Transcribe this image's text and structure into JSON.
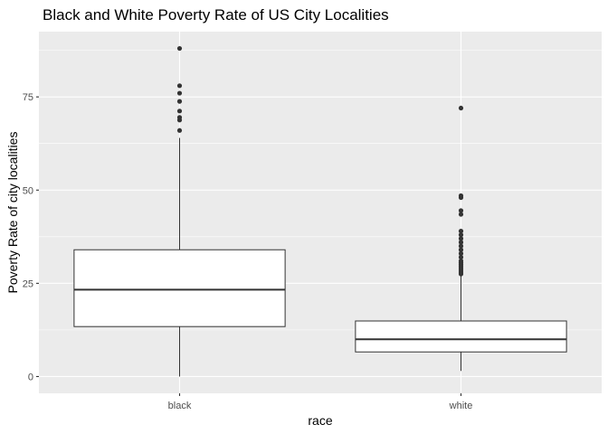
{
  "chart_data": {
    "type": "boxplot",
    "title": "Black and White Poverty Rate of US City Localities",
    "xlabel": "race",
    "ylabel": "Poverty Rate of city localities",
    "categories": [
      "black",
      "white"
    ],
    "ylim": [
      -4.5,
      92.5
    ],
    "yticks": [
      0,
      25,
      50,
      75
    ],
    "grid": true,
    "colors": {
      "panel": "#ebebeb",
      "grid_major": "#ffffff",
      "box_fill": "#ffffff",
      "box_line": "#333333",
      "outlier": "#333333",
      "tick_text": "#4d4d4d"
    },
    "boxes": [
      {
        "category": "black",
        "min": 0,
        "q1": 13.4,
        "median": 23.3,
        "q3": 34.0,
        "max": 64.0,
        "outliers": [
          66.0,
          68.8,
          69.5,
          71.2,
          73.8,
          76.0,
          78.0,
          88.0
        ]
      },
      {
        "category": "white",
        "min": 1.5,
        "q1": 6.6,
        "median": 10.0,
        "q3": 14.9,
        "max": 27.0,
        "outliers": [
          27.5,
          28.0,
          28.5,
          29.0,
          29.5,
          30.0,
          30.5,
          31.0,
          32.0,
          33.0,
          34.0,
          35.0,
          36.0,
          37.0,
          38.0,
          39.0,
          43.5,
          44.5,
          48.0,
          48.5,
          72.0
        ]
      }
    ]
  }
}
